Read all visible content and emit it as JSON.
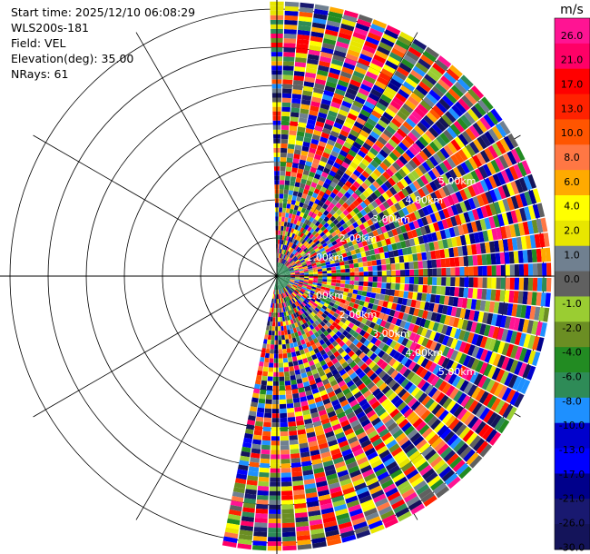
{
  "header": {
    "start_time": "Start time: 2025/12/10 06:08:29",
    "instrument": "WLS200s-181",
    "field": "Field: VEL",
    "elevation": "Elevation(deg): 35.00",
    "nrays": "NRays: 61"
  },
  "chart_data": {
    "type": "heatmap",
    "projection": "polar-ppi",
    "field": "VEL",
    "nrays": 61,
    "azimuth_range_deg": [
      0,
      190
    ],
    "range_rings_km": [
      1,
      2,
      3,
      4,
      5,
      6,
      7
    ],
    "ring_labels": [
      "1.00km",
      "2.00km",
      "3.00km",
      "4.00km",
      "5.00km"
    ],
    "colorbar": {
      "unit": "m/s",
      "ticks": [
        "26.0",
        "21.0",
        "17.0",
        "13.0",
        "10.0",
        "8.0",
        "6.0",
        "4.0",
        "2.0",
        "1.0",
        "0.0",
        "-1.0",
        "-2.0",
        "-4.0",
        "-6.0",
        "-8.0",
        "-10.0",
        "-13.0",
        "-17.0",
        "-21.0",
        "-26.0",
        "-30.0"
      ],
      "colors": [
        "#ff1493",
        "#ff0066",
        "#ff0000",
        "#ff2200",
        "#ff5500",
        "#ff7744",
        "#ffaa00",
        "#ffff00",
        "#e8e600",
        "#708090",
        "#606060",
        "#9acd32",
        "#6b8e23",
        "#228b22",
        "#2e8b57",
        "#1e90ff",
        "#0000cd",
        "#0000ff",
        "#00008b",
        "#191970",
        "#14145a"
      ]
    }
  }
}
